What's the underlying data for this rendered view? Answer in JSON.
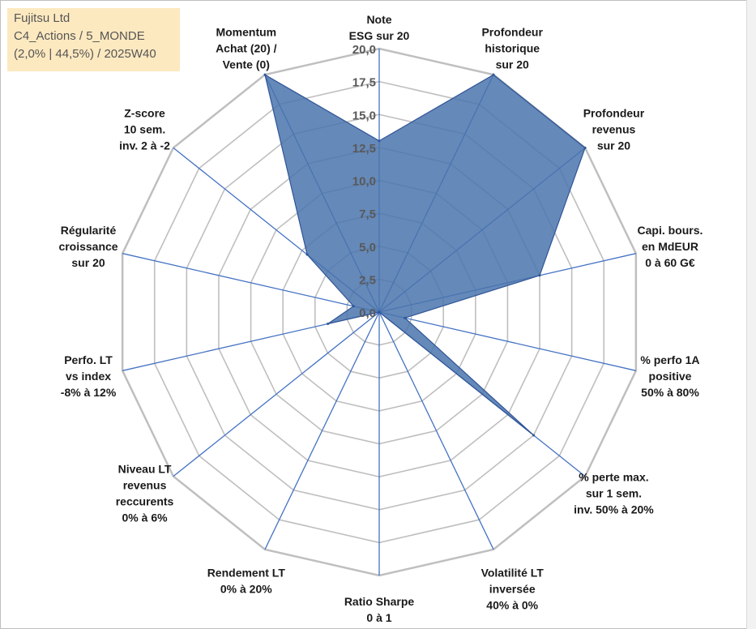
{
  "info_box": {
    "line1": "Fujitsu Ltd",
    "line2": "C4_Actions / 5_MONDE",
    "line3": "(2,0% | 44,5%) / 2025W40"
  },
  "chart_data": {
    "type": "radar",
    "axes": [
      [
        "Note",
        "ESG sur 20"
      ],
      [
        "Profondeur",
        "historique",
        "sur 20"
      ],
      [
        "Profondeur",
        "revenus",
        "sur 20"
      ],
      [
        "Capi. bours.",
        "en MdEUR",
        "0 à 60 G€"
      ],
      [
        "% perfo 1A",
        "positive",
        "50% à 80%"
      ],
      [
        "% perte max.",
        "sur 1 sem.",
        "inv. 50% à 20%"
      ],
      [
        "Volatilité LT",
        "inversée",
        "40% à 0%"
      ],
      [
        "Ratio Sharpe",
        "0 à 1"
      ],
      [
        "Rendement LT",
        "0% à 20%"
      ],
      [
        "Niveau LT",
        "revenus",
        "reccurents",
        "0% à 6%"
      ],
      [
        "Perfo. LT",
        "vs index",
        "-8% à 12%"
      ],
      [
        "Régularité",
        "croissance",
        "sur 20"
      ],
      [
        "Z-score",
        "10 sem.",
        "inv. 2 à -2"
      ],
      [
        "Momentum",
        "Achat (20) /",
        "Vente (0)"
      ]
    ],
    "values": [
      13,
      20,
      20,
      12.5,
      2,
      15,
      0,
      0,
      0,
      0,
      4,
      2,
      7,
      20
    ],
    "rlim": [
      0,
      20
    ],
    "ticks": [
      "0,0",
      "2,5",
      "5,0",
      "7,5",
      "10,0",
      "12,5",
      "15,0",
      "17,5",
      "20,0"
    ],
    "colors": {
      "fill": "#4a74ad",
      "stroke": "#2f5597",
      "grid": "#bfbfbf",
      "spoke": "#4472c4"
    },
    "legend": "none"
  }
}
